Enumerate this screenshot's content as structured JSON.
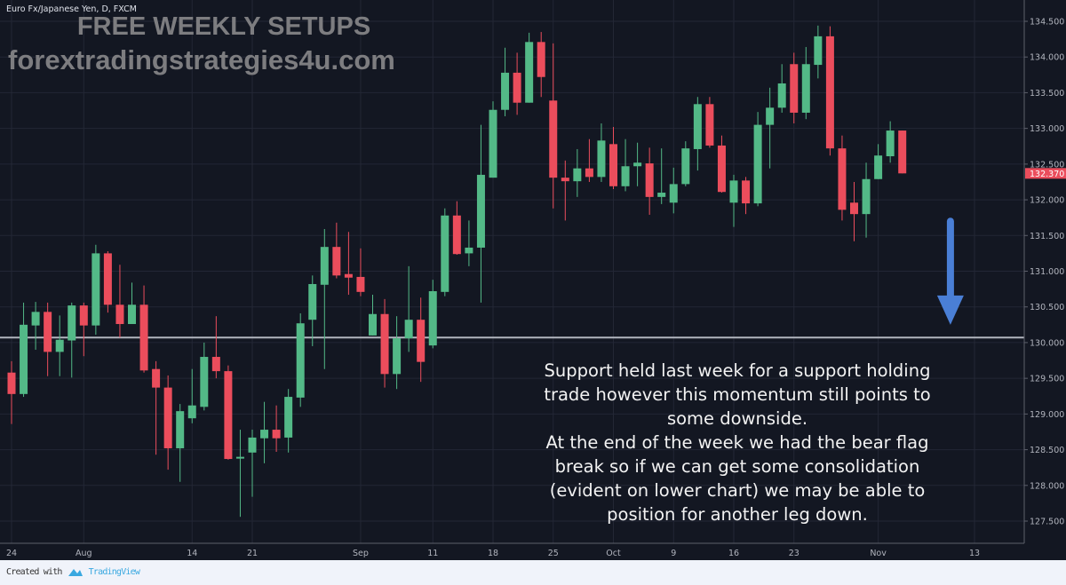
{
  "header": {
    "title": "Euro Fx/Japanese Yen, D, FXCM"
  },
  "watermark": {
    "line1": "FREE WEEKLY SETUPS",
    "line2": "forextradingstrategies4u.com"
  },
  "annotation": {
    "lines": [
      "Support held last week for a support holding",
      "trade however this momentum still points to",
      "some downside.",
      "At the end of the week we had the bear flag",
      "break so if we can get some consolidation",
      "(evident on lower chart) we may be able to",
      "position for another leg down."
    ]
  },
  "footer": {
    "created_with": "Created with",
    "brand": "TradingView"
  },
  "colors": {
    "background": "#131722",
    "grid": "#1f2330",
    "up": "#53b987",
    "down": "#eb4d5c",
    "support_line": "#b2b5be",
    "arrow": "#4a7fd6",
    "last_price_tag": "#eb4d5c"
  },
  "chart_data": {
    "type": "candlestick",
    "symbol": "Euro Fx/Japanese Yen, D, FXCM",
    "ylim": [
      127.2,
      134.8
    ],
    "y_ticks": [
      "134.500",
      "134.000",
      "133.500",
      "133.000",
      "132.500",
      "132.000",
      "131.500",
      "131.000",
      "130.500",
      "130.000",
      "129.500",
      "129.000",
      "128.500",
      "128.000",
      "127.500"
    ],
    "x_ticks": [
      {
        "date": "2017-07-24",
        "label": "24"
      },
      {
        "date": "2017-08-01",
        "label": "Aug"
      },
      {
        "date": "2017-08-14",
        "label": "14"
      },
      {
        "date": "2017-08-21",
        "label": "21"
      },
      {
        "date": "2017-09-01",
        "label": "Sep"
      },
      {
        "date": "2017-09-11",
        "label": "11"
      },
      {
        "date": "2017-09-18",
        "label": "18"
      },
      {
        "date": "2017-09-25",
        "label": "25"
      },
      {
        "date": "2017-10-02",
        "label": "Oct"
      },
      {
        "date": "2017-10-09",
        "label": "9"
      },
      {
        "date": "2017-10-16",
        "label": "16"
      },
      {
        "date": "2017-10-23",
        "label": "23"
      },
      {
        "date": "2017-11-01",
        "label": "Nov"
      },
      {
        "date": "2017-11-13",
        "label": "13"
      }
    ],
    "last_price": "132.370",
    "support_level": 130.07,
    "grid": true,
    "arrow": {
      "direction": "down",
      "from_price": 131.7,
      "to_price": 130.25,
      "date": "2017-11-09"
    },
    "candles_columns": [
      "date",
      "open",
      "high",
      "low",
      "close"
    ],
    "candles": [
      [
        "2017-07-24",
        129.58,
        129.74,
        128.86,
        129.28
      ],
      [
        "2017-07-25",
        129.28,
        130.56,
        129.24,
        130.25
      ],
      [
        "2017-07-26",
        130.24,
        130.57,
        129.9,
        130.43
      ],
      [
        "2017-07-27",
        130.43,
        130.56,
        129.53,
        129.87
      ],
      [
        "2017-07-28",
        129.87,
        130.38,
        129.53,
        130.04
      ],
      [
        "2017-07-31",
        130.03,
        130.56,
        129.51,
        130.52
      ],
      [
        "2017-08-01",
        130.52,
        130.56,
        129.81,
        130.24
      ],
      [
        "2017-08-02",
        130.24,
        131.37,
        130.11,
        131.25
      ],
      [
        "2017-08-03",
        131.25,
        131.28,
        130.42,
        130.53
      ],
      [
        "2017-08-04",
        130.53,
        131.09,
        130.07,
        130.26
      ],
      [
        "2017-08-07",
        130.26,
        130.84,
        130.26,
        130.53
      ],
      [
        "2017-08-08",
        130.53,
        130.8,
        129.58,
        129.61
      ],
      [
        "2017-08-09",
        129.63,
        129.74,
        128.43,
        129.37
      ],
      [
        "2017-08-10",
        129.37,
        129.54,
        128.22,
        128.52
      ],
      [
        "2017-08-11",
        128.52,
        129.14,
        128.05,
        129.04
      ],
      [
        "2017-08-14",
        128.94,
        129.63,
        128.87,
        129.12
      ],
      [
        "2017-08-15",
        129.1,
        130.0,
        129.05,
        129.8
      ],
      [
        "2017-08-16",
        129.8,
        130.37,
        129.5,
        129.6
      ],
      [
        "2017-08-17",
        129.6,
        129.68,
        128.36,
        128.37
      ],
      [
        "2017-08-18",
        128.38,
        128.78,
        127.56,
        128.4
      ],
      [
        "2017-08-21",
        128.46,
        128.78,
        127.84,
        128.67
      ],
      [
        "2017-08-22",
        128.66,
        129.17,
        128.31,
        128.78
      ],
      [
        "2017-08-23",
        128.78,
        129.12,
        128.47,
        128.66
      ],
      [
        "2017-08-24",
        128.67,
        129.35,
        128.46,
        129.24
      ],
      [
        "2017-08-25",
        129.23,
        130.41,
        129.1,
        130.27
      ],
      [
        "2017-08-28",
        130.32,
        130.94,
        129.95,
        130.82
      ],
      [
        "2017-08-29",
        130.81,
        131.59,
        129.63,
        131.34
      ],
      [
        "2017-08-30",
        131.34,
        131.68,
        130.9,
        130.94
      ],
      [
        "2017-08-31",
        130.96,
        131.55,
        130.67,
        130.91
      ],
      [
        "2017-09-01",
        130.92,
        131.32,
        130.65,
        130.71
      ],
      [
        "2017-09-04",
        130.1,
        130.67,
        130.1,
        130.4
      ],
      [
        "2017-09-05",
        130.4,
        130.61,
        129.37,
        129.56
      ],
      [
        "2017-09-06",
        129.56,
        130.37,
        129.35,
        130.06
      ],
      [
        "2017-09-07",
        130.06,
        131.07,
        129.87,
        130.32
      ],
      [
        "2017-09-08",
        130.32,
        130.63,
        129.45,
        129.73
      ],
      [
        "2017-09-11",
        129.96,
        130.88,
        129.92,
        130.72
      ],
      [
        "2017-09-12",
        130.71,
        131.88,
        130.65,
        131.78
      ],
      [
        "2017-09-13",
        131.78,
        131.98,
        131.23,
        131.24
      ],
      [
        "2017-09-14",
        131.25,
        131.71,
        131.07,
        131.33
      ],
      [
        "2017-09-15",
        131.33,
        133.05,
        130.56,
        132.35
      ],
      [
        "2017-09-18",
        132.31,
        133.38,
        132.31,
        133.26
      ],
      [
        "2017-09-19",
        133.26,
        134.13,
        133.17,
        133.78
      ],
      [
        "2017-09-20",
        133.78,
        134.06,
        133.19,
        133.36
      ],
      [
        "2017-09-21",
        133.36,
        134.34,
        133.36,
        134.21
      ],
      [
        "2017-09-22",
        134.21,
        134.35,
        133.44,
        133.72
      ],
      [
        "2017-09-25",
        133.39,
        134.19,
        131.88,
        132.31
      ],
      [
        "2017-09-26",
        132.31,
        132.55,
        131.71,
        132.26
      ],
      [
        "2017-09-27",
        132.26,
        132.71,
        132.04,
        132.44
      ],
      [
        "2017-09-28",
        132.44,
        132.85,
        132.25,
        132.32
      ],
      [
        "2017-09-29",
        132.32,
        133.07,
        132.25,
        132.83
      ],
      [
        "2017-10-02",
        132.78,
        133.02,
        132.15,
        132.19
      ],
      [
        "2017-10-03",
        132.19,
        132.85,
        132.12,
        132.47
      ],
      [
        "2017-10-04",
        132.47,
        132.8,
        132.19,
        132.52
      ],
      [
        "2017-10-05",
        132.51,
        132.73,
        131.79,
        132.04
      ],
      [
        "2017-10-06",
        132.04,
        132.72,
        131.94,
        132.1
      ],
      [
        "2017-10-09",
        131.96,
        132.45,
        131.81,
        132.22
      ],
      [
        "2017-10-10",
        132.22,
        132.82,
        132.19,
        132.72
      ],
      [
        "2017-10-11",
        132.71,
        133.44,
        132.41,
        133.34
      ],
      [
        "2017-10-12",
        133.34,
        133.44,
        132.73,
        132.76
      ],
      [
        "2017-10-13",
        132.76,
        132.9,
        132.1,
        132.11
      ],
      [
        "2017-10-16",
        131.96,
        132.35,
        131.62,
        132.27
      ],
      [
        "2017-10-17",
        132.27,
        132.32,
        131.8,
        131.95
      ],
      [
        "2017-10-18",
        131.95,
        133.23,
        131.91,
        133.05
      ],
      [
        "2017-10-19",
        133.05,
        133.57,
        132.44,
        133.29
      ],
      [
        "2017-10-20",
        133.29,
        133.9,
        133.22,
        133.63
      ],
      [
        "2017-10-23",
        133.9,
        134.06,
        133.07,
        133.22
      ],
      [
        "2017-10-24",
        133.22,
        134.14,
        133.13,
        133.9
      ],
      [
        "2017-10-25",
        133.89,
        134.44,
        133.7,
        134.29
      ],
      [
        "2017-10-26",
        134.29,
        134.43,
        132.62,
        132.72
      ],
      [
        "2017-10-27",
        132.72,
        132.9,
        131.71,
        131.86
      ],
      [
        "2017-10-30",
        131.96,
        132.25,
        131.42,
        131.8
      ],
      [
        "2017-10-31",
        131.8,
        132.52,
        131.47,
        132.29
      ],
      [
        "2017-11-01",
        132.29,
        132.78,
        132.29,
        132.62
      ],
      [
        "2017-11-02",
        132.61,
        133.1,
        132.52,
        132.97
      ],
      [
        "2017-11-03",
        132.97,
        132.97,
        132.37,
        132.37
      ]
    ]
  }
}
